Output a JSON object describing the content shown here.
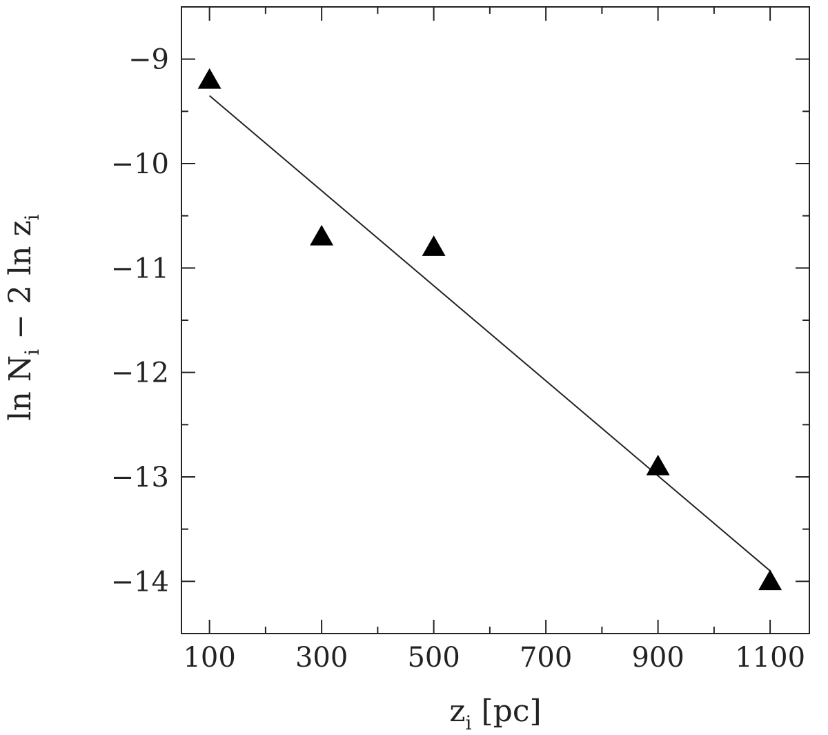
{
  "chart_data": {
    "type": "scatter",
    "xlabel": "z",
    "xlabel_sub": "i",
    "xlabel_unit": "[pc]",
    "ylabel": {
      "part1": "ln N",
      "sub1": "i",
      "part2": " − 2 ln z",
      "sub2": "i"
    },
    "xlim": [
      50,
      1170
    ],
    "ylim": [
      -14.5,
      -8.5
    ],
    "x_ticks": [
      100,
      300,
      500,
      700,
      900,
      1100
    ],
    "x_tick_labels": [
      "100",
      "300",
      "500",
      "700",
      "900",
      "1100"
    ],
    "y_ticks": [
      -9,
      -10,
      -11,
      -12,
      -13,
      -14
    ],
    "y_tick_labels": [
      "−9",
      "−10",
      "−11",
      "−12",
      "−13",
      "−14"
    ],
    "grid": false,
    "marker": "filled-triangle",
    "points": [
      {
        "x": 100,
        "y": -9.2
      },
      {
        "x": 300,
        "y": -10.7
      },
      {
        "x": 500,
        "y": -10.8
      },
      {
        "x": 900,
        "y": -12.9
      },
      {
        "x": 1100,
        "y": -14.0
      }
    ],
    "fit_line": {
      "x": [
        100,
        1100
      ],
      "y": [
        -9.35,
        -13.9
      ]
    }
  }
}
